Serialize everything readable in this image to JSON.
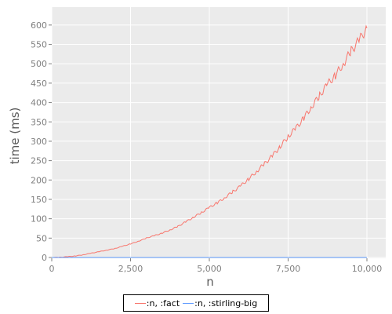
{
  "chart_data": {
    "type": "line",
    "xlabel": "n",
    "ylabel": "time (ms)",
    "xlim": [
      0,
      10000
    ],
    "ylim": [
      0,
      620
    ],
    "xticks": [
      0,
      2500,
      5000,
      7500,
      10000
    ],
    "xtick_labels": [
      "0",
      "2,500",
      "5,000",
      "7,500",
      "10,000"
    ],
    "yticks": [
      0,
      50,
      100,
      150,
      200,
      250,
      300,
      350,
      400,
      450,
      500,
      550,
      600
    ],
    "ytick_labels": [
      "0",
      "50",
      "100",
      "150",
      "200",
      "250",
      "300",
      "350",
      "400",
      "450",
      "500",
      "550",
      "600"
    ],
    "grid": true,
    "legend_position": "bottom-center",
    "series": [
      {
        "name": ":n, :fact",
        "color": "#f8766d",
        "x": [
          0,
          250,
          500,
          750,
          1000,
          1250,
          1500,
          1750,
          2000,
          2250,
          2500,
          2750,
          3000,
          3250,
          3500,
          3750,
          4000,
          4250,
          4500,
          4750,
          5000,
          5250,
          5500,
          5750,
          6000,
          6250,
          6500,
          6750,
          7000,
          7250,
          7500,
          7750,
          8000,
          8250,
          8500,
          8750,
          9000,
          9250,
          9500,
          9750,
          10000
        ],
        "y": [
          0,
          0.5,
          2,
          4,
          7,
          11,
          15,
          19,
          23,
          29,
          35,
          42,
          50,
          56,
          63,
          71,
          80,
          92,
          104,
          116,
          129,
          141,
          155,
          170,
          185,
          203,
          222,
          242,
          262,
          287,
          312,
          334,
          360,
          390,
          418,
          447,
          470,
          500,
          533,
          560,
          592
        ]
      },
      {
        "name": ":n, :stirling-big",
        "color": "#619cff",
        "x": [
          0,
          2500,
          5000,
          7500,
          10000
        ],
        "y": [
          0,
          0,
          0,
          0,
          0
        ]
      }
    ]
  }
}
